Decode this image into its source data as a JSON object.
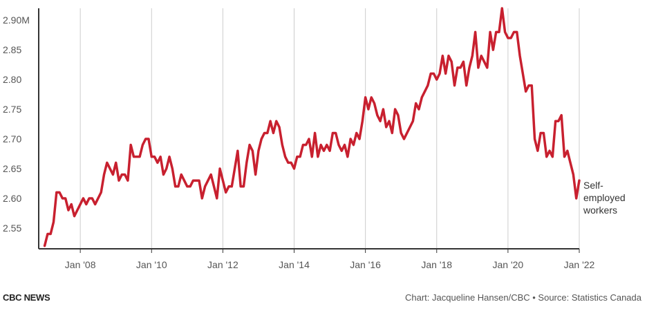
{
  "chart_data": {
    "type": "line",
    "series": [
      {
        "name": "Self-employed workers",
        "color": "#c8202f",
        "points": [
          [
            "2007-01",
            2.52
          ],
          [
            "2007-02",
            2.54
          ],
          [
            "2007-03",
            2.54
          ],
          [
            "2007-04",
            2.56
          ],
          [
            "2007-05",
            2.61
          ],
          [
            "2007-06",
            2.61
          ],
          [
            "2007-07",
            2.6
          ],
          [
            "2007-08",
            2.6
          ],
          [
            "2007-09",
            2.58
          ],
          [
            "2007-10",
            2.59
          ],
          [
            "2007-11",
            2.57
          ],
          [
            "2007-12",
            2.58
          ],
          [
            "2008-01",
            2.59
          ],
          [
            "2008-02",
            2.6
          ],
          [
            "2008-03",
            2.59
          ],
          [
            "2008-04",
            2.6
          ],
          [
            "2008-05",
            2.6
          ],
          [
            "2008-06",
            2.59
          ],
          [
            "2008-07",
            2.6
          ],
          [
            "2008-08",
            2.61
          ],
          [
            "2008-09",
            2.64
          ],
          [
            "2008-10",
            2.66
          ],
          [
            "2008-11",
            2.65
          ],
          [
            "2008-12",
            2.64
          ],
          [
            "2009-01",
            2.66
          ],
          [
            "2009-02",
            2.63
          ],
          [
            "2009-03",
            2.64
          ],
          [
            "2009-04",
            2.64
          ],
          [
            "2009-05",
            2.63
          ],
          [
            "2009-06",
            2.69
          ],
          [
            "2009-07",
            2.67
          ],
          [
            "2009-08",
            2.67
          ],
          [
            "2009-09",
            2.67
          ],
          [
            "2009-10",
            2.69
          ],
          [
            "2009-11",
            2.7
          ],
          [
            "2009-12",
            2.7
          ],
          [
            "2010-01",
            2.67
          ],
          [
            "2010-02",
            2.67
          ],
          [
            "2010-03",
            2.66
          ],
          [
            "2010-04",
            2.67
          ],
          [
            "2010-05",
            2.64
          ],
          [
            "2010-06",
            2.65
          ],
          [
            "2010-07",
            2.67
          ],
          [
            "2010-08",
            2.65
          ],
          [
            "2010-09",
            2.62
          ],
          [
            "2010-10",
            2.62
          ],
          [
            "2010-11",
            2.64
          ],
          [
            "2010-12",
            2.63
          ],
          [
            "2011-01",
            2.62
          ],
          [
            "2011-02",
            2.62
          ],
          [
            "2011-03",
            2.63
          ],
          [
            "2011-04",
            2.63
          ],
          [
            "2011-05",
            2.63
          ],
          [
            "2011-06",
            2.6
          ],
          [
            "2011-07",
            2.62
          ],
          [
            "2011-08",
            2.63
          ],
          [
            "2011-09",
            2.64
          ],
          [
            "2011-10",
            2.62
          ],
          [
            "2011-11",
            2.6
          ],
          [
            "2011-12",
            2.65
          ],
          [
            "2012-01",
            2.63
          ],
          [
            "2012-02",
            2.61
          ],
          [
            "2012-03",
            2.62
          ],
          [
            "2012-04",
            2.62
          ],
          [
            "2012-05",
            2.65
          ],
          [
            "2012-06",
            2.68
          ],
          [
            "2012-07",
            2.62
          ],
          [
            "2012-08",
            2.62
          ],
          [
            "2012-09",
            2.66
          ],
          [
            "2012-10",
            2.69
          ],
          [
            "2012-11",
            2.68
          ],
          [
            "2012-12",
            2.64
          ],
          [
            "2013-01",
            2.68
          ],
          [
            "2013-02",
            2.7
          ],
          [
            "2013-03",
            2.71
          ],
          [
            "2013-04",
            2.71
          ],
          [
            "2013-05",
            2.73
          ],
          [
            "2013-06",
            2.71
          ],
          [
            "2013-07",
            2.73
          ],
          [
            "2013-08",
            2.72
          ],
          [
            "2013-09",
            2.69
          ],
          [
            "2013-10",
            2.67
          ],
          [
            "2013-11",
            2.66
          ],
          [
            "2013-12",
            2.66
          ],
          [
            "2014-01",
            2.65
          ],
          [
            "2014-02",
            2.67
          ],
          [
            "2014-03",
            2.67
          ],
          [
            "2014-04",
            2.69
          ],
          [
            "2014-05",
            2.69
          ],
          [
            "2014-06",
            2.7
          ],
          [
            "2014-07",
            2.67
          ],
          [
            "2014-08",
            2.71
          ],
          [
            "2014-09",
            2.67
          ],
          [
            "2014-10",
            2.69
          ],
          [
            "2014-11",
            2.68
          ],
          [
            "2014-12",
            2.69
          ],
          [
            "2015-01",
            2.68
          ],
          [
            "2015-02",
            2.71
          ],
          [
            "2015-03",
            2.71
          ],
          [
            "2015-04",
            2.69
          ],
          [
            "2015-05",
            2.68
          ],
          [
            "2015-06",
            2.69
          ],
          [
            "2015-07",
            2.67
          ],
          [
            "2015-08",
            2.7
          ],
          [
            "2015-09",
            2.69
          ],
          [
            "2015-10",
            2.71
          ],
          [
            "2015-11",
            2.7
          ],
          [
            "2015-12",
            2.73
          ],
          [
            "2016-01",
            2.77
          ],
          [
            "2016-02",
            2.75
          ],
          [
            "2016-03",
            2.77
          ],
          [
            "2016-04",
            2.76
          ],
          [
            "2016-05",
            2.74
          ],
          [
            "2016-06",
            2.73
          ],
          [
            "2016-07",
            2.75
          ],
          [
            "2016-08",
            2.72
          ],
          [
            "2016-09",
            2.73
          ],
          [
            "2016-10",
            2.71
          ],
          [
            "2016-11",
            2.75
          ],
          [
            "2016-12",
            2.74
          ],
          [
            "2017-01",
            2.71
          ],
          [
            "2017-02",
            2.7
          ],
          [
            "2017-03",
            2.71
          ],
          [
            "2017-04",
            2.72
          ],
          [
            "2017-05",
            2.73
          ],
          [
            "2017-06",
            2.76
          ],
          [
            "2017-07",
            2.75
          ],
          [
            "2017-08",
            2.77
          ],
          [
            "2017-09",
            2.78
          ],
          [
            "2017-10",
            2.79
          ],
          [
            "2017-11",
            2.81
          ],
          [
            "2017-12",
            2.81
          ],
          [
            "2018-01",
            2.8
          ],
          [
            "2018-02",
            2.81
          ],
          [
            "2018-03",
            2.84
          ],
          [
            "2018-04",
            2.81
          ],
          [
            "2018-05",
            2.84
          ],
          [
            "2018-06",
            2.83
          ],
          [
            "2018-07",
            2.79
          ],
          [
            "2018-08",
            2.82
          ],
          [
            "2018-09",
            2.82
          ],
          [
            "2018-10",
            2.83
          ],
          [
            "2018-11",
            2.79
          ],
          [
            "2018-12",
            2.82
          ],
          [
            "2019-01",
            2.84
          ],
          [
            "2019-02",
            2.88
          ],
          [
            "2019-03",
            2.82
          ],
          [
            "2019-04",
            2.84
          ],
          [
            "2019-05",
            2.83
          ],
          [
            "2019-06",
            2.82
          ],
          [
            "2019-07",
            2.88
          ],
          [
            "2019-08",
            2.85
          ],
          [
            "2019-09",
            2.88
          ],
          [
            "2019-10",
            2.88
          ],
          [
            "2019-11",
            2.92
          ],
          [
            "2019-12",
            2.88
          ],
          [
            "2020-01",
            2.87
          ],
          [
            "2020-02",
            2.87
          ],
          [
            "2020-03",
            2.88
          ],
          [
            "2020-04",
            2.88
          ],
          [
            "2020-05",
            2.84
          ],
          [
            "2020-06",
            2.81
          ],
          [
            "2020-07",
            2.78
          ],
          [
            "2020-08",
            2.79
          ],
          [
            "2020-09",
            2.79
          ],
          [
            "2020-10",
            2.7
          ],
          [
            "2020-11",
            2.68
          ],
          [
            "2020-12",
            2.71
          ],
          [
            "2021-01",
            2.71
          ],
          [
            "2021-02",
            2.67
          ],
          [
            "2021-03",
            2.68
          ],
          [
            "2021-04",
            2.67
          ],
          [
            "2021-05",
            2.73
          ],
          [
            "2021-06",
            2.73
          ],
          [
            "2021-07",
            2.74
          ],
          [
            "2021-08",
            2.67
          ],
          [
            "2021-09",
            2.68
          ],
          [
            "2021-10",
            2.66
          ],
          [
            "2021-11",
            2.64
          ],
          [
            "2021-12",
            2.6
          ],
          [
            "2022-01",
            2.63
          ]
        ]
      }
    ],
    "series_label_lines": [
      "Self-",
      "employed",
      "workers"
    ],
    "x_ticks": [
      {
        "date": "2008-01",
        "label": "Jan '08"
      },
      {
        "date": "2010-01",
        "label": "Jan '10"
      },
      {
        "date": "2012-01",
        "label": "Jan '12"
      },
      {
        "date": "2014-01",
        "label": "Jan '14"
      },
      {
        "date": "2016-01",
        "label": "Jan '16"
      },
      {
        "date": "2018-01",
        "label": "Jan '18"
      },
      {
        "date": "2020-01",
        "label": "Jan '20"
      },
      {
        "date": "2022-01",
        "label": "Jan '22"
      }
    ],
    "y_ticks": [
      {
        "value": 2.55,
        "label": "2.55"
      },
      {
        "value": 2.6,
        "label": "2.60"
      },
      {
        "value": 2.65,
        "label": "2.65"
      },
      {
        "value": 2.7,
        "label": "2.70"
      },
      {
        "value": 2.75,
        "label": "2.75"
      },
      {
        "value": 2.8,
        "label": "2.80"
      },
      {
        "value": 2.85,
        "label": "2.85"
      },
      {
        "value": 2.9,
        "label": "2.90M"
      }
    ],
    "xlim": [
      "2006-11",
      "2022-01"
    ],
    "ylim": [
      2.515,
      2.92
    ],
    "grid": "vertical",
    "axis_color": "#333333",
    "grid_color": "#cccccc"
  },
  "footer": {
    "brand": "CBC NEWS",
    "credit": "Chart: Jacqueline Hansen/CBC • Source: Statistics Canada"
  }
}
